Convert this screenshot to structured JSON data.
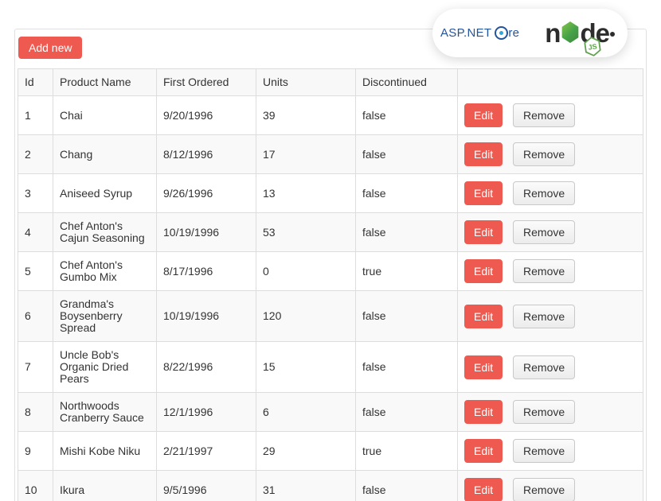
{
  "toolbar": {
    "add_new_label": "Add new"
  },
  "brand_badge": {
    "aspnet_logo": {
      "text": "ASP.NET",
      "core_suffix": "re"
    },
    "node_logo": {
      "letter_n": "n",
      "letter_d": "d",
      "letter_e": "e",
      "js_label": "JS"
    }
  },
  "table": {
    "columns": [
      "Id",
      "Product Name",
      "First Ordered",
      "Units",
      "Discontinued",
      ""
    ],
    "action_labels": {
      "edit": "Edit",
      "remove": "Remove"
    },
    "rows": [
      {
        "id": "1",
        "name": "Chai",
        "first_ordered": "9/20/1996",
        "units": "39",
        "discontinued": "false"
      },
      {
        "id": "2",
        "name": "Chang",
        "first_ordered": "8/12/1996",
        "units": "17",
        "discontinued": "false"
      },
      {
        "id": "3",
        "name": "Aniseed Syrup",
        "first_ordered": "9/26/1996",
        "units": "13",
        "discontinued": "false"
      },
      {
        "id": "4",
        "name": "Chef Anton's Cajun Seasoning",
        "first_ordered": "10/19/1996",
        "units": "53",
        "discontinued": "false"
      },
      {
        "id": "5",
        "name": "Chef Anton's Gumbo Mix",
        "first_ordered": "8/17/1996",
        "units": "0",
        "discontinued": "true"
      },
      {
        "id": "6",
        "name": "Grandma's Boysenberry Spread",
        "first_ordered": "10/19/1996",
        "units": "120",
        "discontinued": "false"
      },
      {
        "id": "7",
        "name": "Uncle Bob's Organic Dried Pears",
        "first_ordered": "8/22/1996",
        "units": "15",
        "discontinued": "false"
      },
      {
        "id": "8",
        "name": "Northwoods Cranberry Sauce",
        "first_ordered": "12/1/1996",
        "units": "6",
        "discontinued": "false"
      },
      {
        "id": "9",
        "name": "Mishi Kobe Niku",
        "first_ordered": "2/21/1997",
        "units": "29",
        "discontinued": "true"
      },
      {
        "id": "10",
        "name": "Ikura",
        "first_ordered": "9/5/1996",
        "units": "31",
        "discontinued": "false"
      }
    ]
  },
  "colors": {
    "accent_red": "#ee5a50",
    "aspnet_blue": "#24549c",
    "core_dot_blue": "#35a3dc",
    "node_green": "#5fa04e",
    "node_black": "#2d2d2d"
  }
}
